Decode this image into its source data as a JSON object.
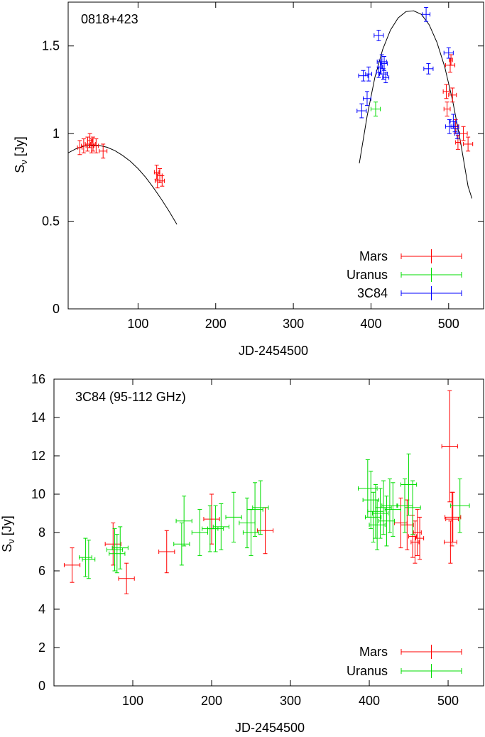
{
  "chart_data": [
    {
      "type": "scatter",
      "title": "0818+423",
      "xlabel": "JD-2454500",
      "ylabel_main": "S",
      "ylabel_sub": "ν",
      "ylabel_tail": " [Jy]",
      "xlim": [
        10,
        545
      ],
      "ylim": [
        0,
        1.75
      ],
      "xticks": [
        100,
        200,
        300,
        400,
        500
      ],
      "yticks": [
        0,
        0.5,
        1,
        1.5
      ],
      "ytick_labels": [
        "0",
        "0.5",
        "1",
        "1.5"
      ],
      "legend_position": "bottom-right",
      "series": [
        {
          "name": "Mars",
          "color": "#ff0000",
          "points": [
            {
              "x": 25,
              "y": 0.92,
              "xerr": 3,
              "yerr": 0.04
            },
            {
              "x": 30,
              "y": 0.93,
              "xerr": 3,
              "yerr": 0.04
            },
            {
              "x": 35,
              "y": 0.94,
              "xerr": 3,
              "yerr": 0.04
            },
            {
              "x": 38,
              "y": 0.96,
              "xerr": 3,
              "yerr": 0.04
            },
            {
              "x": 40,
              "y": 0.93,
              "xerr": 3,
              "yerr": 0.04
            },
            {
              "x": 42,
              "y": 0.94,
              "xerr": 3,
              "yerr": 0.04
            },
            {
              "x": 46,
              "y": 0.93,
              "xerr": 3,
              "yerr": 0.04
            },
            {
              "x": 55,
              "y": 0.9,
              "xerr": 5,
              "yerr": 0.04
            },
            {
              "x": 124,
              "y": 0.78,
              "xerr": 3,
              "yerr": 0.04
            },
            {
              "x": 125,
              "y": 0.73,
              "xerr": 3,
              "yerr": 0.04
            },
            {
              "x": 128,
              "y": 0.76,
              "xerr": 3,
              "yerr": 0.04
            },
            {
              "x": 131,
              "y": 0.73,
              "xerr": 3,
              "yerr": 0.03
            },
            {
              "x": 497,
              "y": 1.24,
              "xerr": 4,
              "yerr": 0.04
            },
            {
              "x": 498,
              "y": 1.14,
              "xerr": 4,
              "yerr": 0.04
            },
            {
              "x": 502,
              "y": 1.39,
              "xerr": 6,
              "yerr": 0.04
            },
            {
              "x": 503,
              "y": 1.42,
              "xerr": 2,
              "yerr": 0.03
            },
            {
              "x": 505,
              "y": 1.22,
              "xerr": 5,
              "yerr": 0.04
            },
            {
              "x": 509,
              "y": 1.04,
              "xerr": 3,
              "yerr": 0.04
            },
            {
              "x": 512,
              "y": 0.95,
              "xerr": 3,
              "yerr": 0.04
            },
            {
              "x": 519,
              "y": 1.0,
              "xerr": 5,
              "yerr": 0.04
            },
            {
              "x": 525,
              "y": 0.94,
              "xerr": 6,
              "yerr": 0.04
            }
          ]
        },
        {
          "name": "Uranus",
          "color": "#00dd00",
          "points": [
            {
              "x": 406,
              "y": 1.14,
              "xerr": 6,
              "yerr": 0.04
            }
          ]
        },
        {
          "name": "3C84",
          "color": "#0000ff",
          "points": [
            {
              "x": 388,
              "y": 1.13,
              "xerr": 6,
              "yerr": 0.04
            },
            {
              "x": 390,
              "y": 1.33,
              "xerr": 6,
              "yerr": 0.03
            },
            {
              "x": 395,
              "y": 1.2,
              "xerr": 5,
              "yerr": 0.04
            },
            {
              "x": 397,
              "y": 1.34,
              "xerr": 4,
              "yerr": 0.04
            },
            {
              "x": 410,
              "y": 1.56,
              "xerr": 6,
              "yerr": 0.03
            },
            {
              "x": 410,
              "y": 1.35,
              "xerr": 3,
              "yerr": 0.03
            },
            {
              "x": 412,
              "y": 1.38,
              "xerr": 3,
              "yerr": 0.04
            },
            {
              "x": 414,
              "y": 1.41,
              "xerr": 6,
              "yerr": 0.04
            },
            {
              "x": 416,
              "y": 1.34,
              "xerr": 5,
              "yerr": 0.03
            },
            {
              "x": 417,
              "y": 1.4,
              "xerr": 4,
              "yerr": 0.04
            },
            {
              "x": 419,
              "y": 1.32,
              "xerr": 4,
              "yerr": 0.03
            },
            {
              "x": 471,
              "y": 1.68,
              "xerr": 5,
              "yerr": 0.04
            },
            {
              "x": 474,
              "y": 1.37,
              "xerr": 6,
              "yerr": 0.03
            },
            {
              "x": 500,
              "y": 1.46,
              "xerr": 6,
              "yerr": 0.03
            },
            {
              "x": 501,
              "y": 1.04,
              "xerr": 5,
              "yerr": 0.04
            },
            {
              "x": 506,
              "y": 1.07,
              "xerr": 4,
              "yerr": 0.04
            },
            {
              "x": 508,
              "y": 1.04,
              "xerr": 5,
              "yerr": 0.03
            },
            {
              "x": 511,
              "y": 1.0,
              "xerr": 3,
              "yerr": 0.03
            }
          ]
        }
      ],
      "fit_curves": [
        {
          "points": [
            [
              10,
              0.89
            ],
            [
              20,
              0.913
            ],
            [
              30,
              0.928
            ],
            [
              40,
              0.934
            ],
            [
              50,
              0.932
            ],
            [
              60,
              0.922
            ],
            [
              70,
              0.903
            ],
            [
              80,
              0.876
            ],
            [
              90,
              0.842
            ],
            [
              100,
              0.8
            ],
            [
              110,
              0.75
            ],
            [
              120,
              0.69
            ],
            [
              130,
              0.626
            ],
            [
              140,
              0.557
            ],
            [
              150,
              0.482
            ]
          ]
        },
        {
          "points": [
            [
              385,
              0.83
            ],
            [
              395,
              1.1
            ],
            [
              405,
              1.32
            ],
            [
              415,
              1.48
            ],
            [
              425,
              1.59
            ],
            [
              435,
              1.66
            ],
            [
              445,
              1.696
            ],
            [
              455,
              1.7
            ],
            [
              465,
              1.68
            ],
            [
              475,
              1.62
            ],
            [
              485,
              1.52
            ],
            [
              495,
              1.38
            ],
            [
              505,
              1.19
            ],
            [
              515,
              0.96
            ],
            [
              525,
              0.7
            ],
            [
              530,
              0.63
            ]
          ]
        }
      ]
    },
    {
      "type": "scatter",
      "title": "3C84 (95-112 GHz)",
      "xlabel": "JD-2454500",
      "ylabel_main": "S",
      "ylabel_sub": "ν",
      "ylabel_tail": " [Jy]",
      "xlim": [
        0,
        545
      ],
      "ylim": [
        0,
        16
      ],
      "xticks": [
        100,
        200,
        300,
        400,
        500
      ],
      "yticks": [
        0,
        2,
        4,
        6,
        8,
        10,
        12,
        14,
        16
      ],
      "ytick_labels": [
        "0",
        "2",
        "4",
        "6",
        "8",
        "10",
        "12",
        "14",
        "16"
      ],
      "legend_position": "bottom-right",
      "series": [
        {
          "name": "Mars",
          "color": "#ff0000",
          "points": [
            {
              "x": 23,
              "y": 6.3,
              "xerr": 10,
              "yerr": 0.9
            },
            {
              "x": 75,
              "y": 7.4,
              "xerr": 10,
              "yerr": 1.1
            },
            {
              "x": 92,
              "y": 5.6,
              "xerr": 10,
              "yerr": 0.8
            },
            {
              "x": 143,
              "y": 7.0,
              "xerr": 10,
              "yerr": 1.1
            },
            {
              "x": 200,
              "y": 8.7,
              "xerr": 10,
              "yerr": 1.3
            },
            {
              "x": 268,
              "y": 8.1,
              "xerr": 10,
              "yerr": 1.2
            },
            {
              "x": 440,
              "y": 8.5,
              "xerr": 8,
              "yerr": 1.3
            },
            {
              "x": 448,
              "y": 8.4,
              "xerr": 8,
              "yerr": 1.3
            },
            {
              "x": 455,
              "y": 7.8,
              "xerr": 5,
              "yerr": 1.1
            },
            {
              "x": 458,
              "y": 7.5,
              "xerr": 5,
              "yerr": 1.1
            },
            {
              "x": 461,
              "y": 8.0,
              "xerr": 5,
              "yerr": 1.2
            },
            {
              "x": 464,
              "y": 7.7,
              "xerr": 5,
              "yerr": 1.1
            },
            {
              "x": 502,
              "y": 12.5,
              "xerr": 10,
              "yerr": 2.9
            },
            {
              "x": 503,
              "y": 7.5,
              "xerr": 8,
              "yerr": 1.1
            },
            {
              "x": 505,
              "y": 8.7,
              "xerr": 8,
              "yerr": 1.4
            },
            {
              "x": 506,
              "y": 8.8,
              "xerr": 10,
              "yerr": 1.3
            }
          ]
        },
        {
          "name": "Uranus",
          "color": "#00dd00",
          "points": [
            {
              "x": 40,
              "y": 6.7,
              "xerr": 8,
              "yerr": 1.0
            },
            {
              "x": 44,
              "y": 6.6,
              "xerr": 8,
              "yerr": 1.0
            },
            {
              "x": 77,
              "y": 7.1,
              "xerr": 10,
              "yerr": 1.1
            },
            {
              "x": 80,
              "y": 6.9,
              "xerr": 10,
              "yerr": 1.0
            },
            {
              "x": 84,
              "y": 7.2,
              "xerr": 10,
              "yerr": 1.1
            },
            {
              "x": 162,
              "y": 7.4,
              "xerr": 10,
              "yerr": 1.1
            },
            {
              "x": 165,
              "y": 8.6,
              "xerr": 10,
              "yerr": 1.3
            },
            {
              "x": 185,
              "y": 8.0,
              "xerr": 10,
              "yerr": 1.2
            },
            {
              "x": 198,
              "y": 8.2,
              "xerr": 10,
              "yerr": 1.2
            },
            {
              "x": 205,
              "y": 8.2,
              "xerr": 10,
              "yerr": 1.2
            },
            {
              "x": 212,
              "y": 8.3,
              "xerr": 10,
              "yerr": 1.2
            },
            {
              "x": 228,
              "y": 8.8,
              "xerr": 10,
              "yerr": 1.3
            },
            {
              "x": 245,
              "y": 8.5,
              "xerr": 10,
              "yerr": 1.3
            },
            {
              "x": 250,
              "y": 8.0,
              "xerr": 10,
              "yerr": 1.2
            },
            {
              "x": 255,
              "y": 9.2,
              "xerr": 10,
              "yerr": 1.4
            },
            {
              "x": 262,
              "y": 9.3,
              "xerr": 10,
              "yerr": 1.4
            },
            {
              "x": 398,
              "y": 10.3,
              "xerr": 12,
              "yerr": 1.5
            },
            {
              "x": 402,
              "y": 9.7,
              "xerr": 10,
              "yerr": 1.5
            },
            {
              "x": 405,
              "y": 8.8,
              "xerr": 10,
              "yerr": 1.3
            },
            {
              "x": 408,
              "y": 9.1,
              "xerr": 10,
              "yerr": 1.4
            },
            {
              "x": 410,
              "y": 8.4,
              "xerr": 10,
              "yerr": 1.3
            },
            {
              "x": 414,
              "y": 9.0,
              "xerr": 10,
              "yerr": 1.3
            },
            {
              "x": 418,
              "y": 9.3,
              "xerr": 10,
              "yerr": 1.4
            },
            {
              "x": 422,
              "y": 8.6,
              "xerr": 10,
              "yerr": 1.3
            },
            {
              "x": 426,
              "y": 9.4,
              "xerr": 10,
              "yerr": 1.4
            },
            {
              "x": 430,
              "y": 9.2,
              "xerr": 10,
              "yerr": 1.4
            },
            {
              "x": 445,
              "y": 9.4,
              "xerr": 10,
              "yerr": 1.4
            },
            {
              "x": 450,
              "y": 10.5,
              "xerr": 10,
              "yerr": 1.6
            },
            {
              "x": 455,
              "y": 9.3,
              "xerr": 10,
              "yerr": 1.4
            },
            {
              "x": 515,
              "y": 9.4,
              "xerr": 12,
              "yerr": 1.4
            }
          ]
        }
      ]
    }
  ]
}
